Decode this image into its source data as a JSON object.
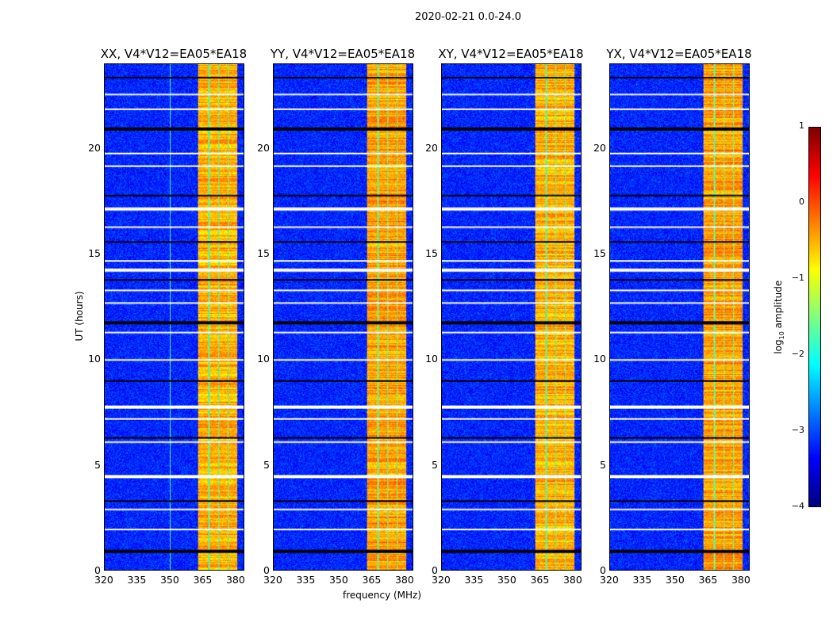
{
  "chart_data": {
    "type": "heatmap",
    "title": "2020-02-21 0.0-24.0",
    "xlabel": "frequency (MHz)",
    "ylabel": "UT (hours)",
    "xlim": [
      320,
      384
    ],
    "ylim": [
      0,
      24
    ],
    "xticks": [
      "320",
      "335",
      "350",
      "365",
      "380"
    ],
    "yticks": [
      "0",
      "5",
      "10",
      "15",
      "20"
    ],
    "bright_band_MHz": [
      363,
      381
    ],
    "background_log_amplitude": -3.2,
    "band_log_amplitude": -0.5,
    "flagged_hours": [
      0.95,
      1.95,
      2.9,
      3.3,
      4.5,
      6.1,
      6.3,
      7.2,
      7.8,
      9.0,
      10.0,
      11.3,
      11.8,
      12.7,
      13.3,
      13.8,
      14.3,
      14.7,
      15.6,
      16.3,
      17.2,
      17.8,
      19.2,
      19.8,
      21.0,
      21.9,
      22.6,
      23.4
    ],
    "panels": [
      {
        "title": "XX, V4*V12=EA05*EA18"
      },
      {
        "title": "YY, V4*V12=EA05*EA18"
      },
      {
        "title": "XY, V4*V12=EA05*EA18"
      },
      {
        "title": "YX, V4*V12=EA05*EA18"
      }
    ],
    "colorbar": {
      "label_prefix": "log",
      "label_sub": "10",
      "label_suffix": " amplitude",
      "ticks": [
        "1",
        "0",
        "−1",
        "−2",
        "−3",
        "−4"
      ],
      "range": [
        -4,
        1
      ],
      "colormap": "jet"
    }
  }
}
